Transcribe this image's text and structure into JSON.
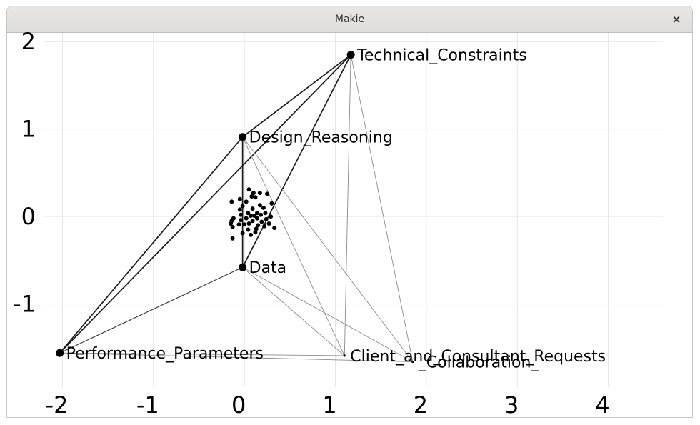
{
  "window": {
    "title": "Makie",
    "close_glyph": "×",
    "close_icon": "close-icon"
  },
  "chart_data": {
    "type": "scatter",
    "title": "",
    "xlabel": "",
    "ylabel": "",
    "xlim": [
      -2.2,
      4.6
    ],
    "ylim": [
      -1.95,
      2.1
    ],
    "grid": true,
    "x_ticks": [
      -2,
      -1,
      0,
      1,
      2,
      3,
      4
    ],
    "x_tick_labels": [
      "-2",
      "-1",
      "0",
      "1",
      "2",
      "3",
      "4"
    ],
    "y_ticks": [
      -1,
      0,
      1,
      2
    ],
    "y_tick_labels": [
      "-1",
      "0",
      "1",
      "2"
    ],
    "nodes": [
      {
        "label": "Technical_Constraints",
        "x": 1.17,
        "y": 1.85,
        "size": "large"
      },
      {
        "label": "Design_Reasoning",
        "x": -0.02,
        "y": 0.91,
        "size": "large"
      },
      {
        "label": "Data",
        "x": -0.02,
        "y": -0.58,
        "size": "large"
      },
      {
        "label": "Performance_Parameters",
        "x": -2.03,
        "y": -1.56,
        "size": "large"
      },
      {
        "label": "Client_and_Consultant_Requests",
        "x": 1.1,
        "y": -1.59,
        "size": "small"
      },
      {
        "label": "_Collaboration_",
        "x": 1.85,
        "y": -1.66,
        "size": "small"
      }
    ],
    "edges": [
      {
        "from": "Technical_Constraints",
        "to": "Design_Reasoning",
        "weight": "strong"
      },
      {
        "from": "Technical_Constraints",
        "to": "Performance_Parameters",
        "weight": "strong"
      },
      {
        "from": "Technical_Constraints",
        "to": "Data",
        "weight": "strong"
      },
      {
        "from": "Technical_Constraints",
        "to": "Client_and_Consultant_Requests",
        "weight": "weak"
      },
      {
        "from": "Technical_Constraints",
        "to": "_Collaboration_",
        "weight": "weak"
      },
      {
        "from": "Design_Reasoning",
        "to": "Performance_Parameters",
        "weight": "strong"
      },
      {
        "from": "Design_Reasoning",
        "to": "Data",
        "weight": "strong"
      },
      {
        "from": "Design_Reasoning",
        "to": "Client_and_Consultant_Requests",
        "weight": "weak"
      },
      {
        "from": "Design_Reasoning",
        "to": "_Collaboration_",
        "weight": "weak"
      },
      {
        "from": "Data",
        "to": "Performance_Parameters",
        "weight": "medium"
      },
      {
        "from": "Data",
        "to": "Client_and_Consultant_Requests",
        "weight": "weak"
      },
      {
        "from": "Data",
        "to": "_Collaboration_",
        "weight": "weak"
      },
      {
        "from": "Performance_Parameters",
        "to": "Client_and_Consultant_Requests",
        "weight": "weak"
      },
      {
        "from": "Performance_Parameters",
        "to": "_Collaboration_",
        "weight": "weak"
      }
    ],
    "cluster_points": [
      [
        0.05,
        0.31
      ],
      [
        0.17,
        0.27
      ],
      [
        0.1,
        0.27
      ],
      [
        0.25,
        0.26
      ],
      [
        0.08,
        0.23
      ],
      [
        -0.05,
        0.2
      ],
      [
        0.12,
        0.22
      ],
      [
        -0.14,
        0.17
      ],
      [
        0.02,
        0.17
      ],
      [
        0.3,
        0.15
      ],
      [
        -0.02,
        0.12
      ],
      [
        0.17,
        0.13
      ],
      [
        -0.05,
        0.08
      ],
      [
        0.09,
        0.09
      ],
      [
        0.21,
        0.1
      ],
      [
        0.04,
        0.04
      ],
      [
        0.14,
        0.04
      ],
      [
        0.23,
        0.04
      ],
      [
        -0.04,
        0.02
      ],
      [
        0.07,
        0.01
      ],
      [
        0.11,
        0.01
      ],
      [
        0.18,
        0.02
      ],
      [
        0.29,
        0.0
      ],
      [
        -0.12,
        -0.02
      ],
      [
        0.02,
        -0.02
      ],
      [
        0.14,
        -0.02
      ],
      [
        0.24,
        -0.03
      ],
      [
        -0.04,
        -0.04
      ],
      [
        0.09,
        -0.05
      ],
      [
        -0.14,
        -0.05
      ],
      [
        -0.15,
        -0.08
      ],
      [
        0.05,
        -0.08
      ],
      [
        -0.06,
        -0.09
      ],
      [
        0.27,
        -0.08
      ],
      [
        0.15,
        -0.1
      ],
      [
        0.22,
        -0.11
      ],
      [
        0.33,
        -0.13
      ],
      [
        -0.13,
        -0.12
      ],
      [
        0.04,
        -0.15
      ],
      [
        0.13,
        -0.14
      ],
      [
        -0.02,
        -0.19
      ],
      [
        0.12,
        -0.18
      ],
      [
        0.07,
        -0.21
      ],
      [
        -0.13,
        -0.25
      ],
      [
        0.0,
        -0.09
      ],
      [
        0.19,
        -0.06
      ]
    ]
  }
}
